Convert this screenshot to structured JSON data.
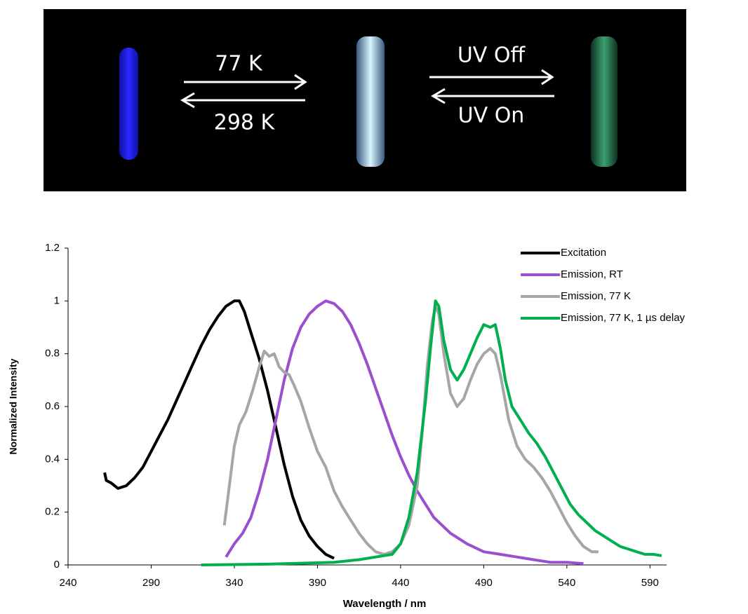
{
  "photo_labels": [
    "77 K",
    "298 K",
    "UV Off",
    "UV On"
  ],
  "chart_data": {
    "type": "line",
    "x_label": "Wavelength / nm",
    "y_label": "Normalized Intensity",
    "xlim": [
      240,
      600
    ],
    "xticks": [
      240,
      290,
      340,
      390,
      440,
      490,
      540,
      590
    ],
    "ylim": [
      0,
      1.2
    ],
    "yticks": [
      0,
      0.2,
      0.4,
      0.6,
      0.8,
      1,
      1.2
    ],
    "grid": false,
    "legend": "upper right",
    "series": [
      {
        "name": "Excitation",
        "color": "#000000",
        "x": [
          262,
          263,
          266,
          270,
          275,
          280,
          285,
          290,
          295,
          300,
          305,
          310,
          315,
          320,
          325,
          330,
          335,
          340,
          343,
          346,
          350,
          355,
          360,
          365,
          370,
          375,
          380,
          385,
          390,
          395,
          400
        ],
        "values": [
          0.35,
          0.32,
          0.31,
          0.29,
          0.3,
          0.33,
          0.37,
          0.43,
          0.49,
          0.55,
          0.62,
          0.69,
          0.76,
          0.83,
          0.89,
          0.94,
          0.98,
          1.0,
          1.0,
          0.96,
          0.88,
          0.78,
          0.66,
          0.52,
          0.38,
          0.26,
          0.17,
          0.11,
          0.07,
          0.04,
          0.025
        ]
      },
      {
        "name": "Emission, RT",
        "color": "#9a4fcf",
        "x": [
          335,
          340,
          345,
          350,
          355,
          360,
          365,
          370,
          375,
          380,
          385,
          390,
          395,
          400,
          405,
          410,
          415,
          420,
          425,
          430,
          435,
          440,
          445,
          450,
          455,
          460,
          470,
          480,
          490,
          500,
          510,
          520,
          530,
          540,
          550
        ],
        "values": [
          0.03,
          0.08,
          0.12,
          0.18,
          0.28,
          0.4,
          0.55,
          0.7,
          0.82,
          0.9,
          0.95,
          0.98,
          1.0,
          0.99,
          0.96,
          0.91,
          0.84,
          0.76,
          0.67,
          0.58,
          0.49,
          0.41,
          0.34,
          0.28,
          0.23,
          0.18,
          0.12,
          0.08,
          0.05,
          0.04,
          0.03,
          0.02,
          0.01,
          0.01,
          0.005
        ]
      },
      {
        "name": "Emission, 77 K",
        "color": "#a6a6a6",
        "x": [
          334,
          336,
          338,
          340,
          343,
          347,
          351,
          355,
          358,
          361,
          364,
          367,
          370,
          373,
          376,
          380,
          385,
          390,
          395,
          400,
          405,
          410,
          415,
          420,
          425,
          430,
          435,
          440,
          445,
          450,
          453,
          456,
          459,
          461,
          463,
          466,
          470,
          474,
          478,
          482,
          486,
          490,
          494,
          497,
          500,
          505,
          510,
          515,
          520,
          525,
          530,
          535,
          540,
          545,
          550,
          555,
          559
        ],
        "values": [
          0.15,
          0.25,
          0.35,
          0.45,
          0.53,
          0.58,
          0.66,
          0.75,
          0.81,
          0.79,
          0.8,
          0.75,
          0.73,
          0.72,
          0.68,
          0.62,
          0.52,
          0.43,
          0.37,
          0.28,
          0.22,
          0.17,
          0.12,
          0.08,
          0.05,
          0.04,
          0.05,
          0.08,
          0.15,
          0.3,
          0.5,
          0.75,
          0.92,
          0.98,
          0.95,
          0.8,
          0.65,
          0.6,
          0.63,
          0.7,
          0.76,
          0.8,
          0.82,
          0.8,
          0.72,
          0.55,
          0.45,
          0.4,
          0.37,
          0.33,
          0.28,
          0.22,
          0.16,
          0.11,
          0.07,
          0.05,
          0.05
        ]
      },
      {
        "name": "Emission, 77 K, 1 µs delay",
        "color": "#00b050",
        "x": [
          320,
          360,
          400,
          415,
          425,
          435,
          440,
          445,
          450,
          455,
          458,
          461,
          463,
          466,
          470,
          474,
          478,
          482,
          486,
          490,
          494,
          497,
          500,
          503,
          507,
          512,
          517,
          522,
          527,
          532,
          537,
          542,
          547,
          552,
          557,
          562,
          567,
          572,
          577,
          582,
          587,
          592,
          597
        ],
        "values": [
          0,
          0.003,
          0.01,
          0.02,
          0.03,
          0.04,
          0.08,
          0.18,
          0.35,
          0.62,
          0.82,
          1.0,
          0.98,
          0.85,
          0.74,
          0.7,
          0.74,
          0.8,
          0.86,
          0.91,
          0.9,
          0.91,
          0.82,
          0.7,
          0.6,
          0.55,
          0.5,
          0.46,
          0.41,
          0.35,
          0.29,
          0.23,
          0.19,
          0.16,
          0.13,
          0.11,
          0.09,
          0.07,
          0.06,
          0.05,
          0.04,
          0.04,
          0.035
        ]
      }
    ]
  }
}
